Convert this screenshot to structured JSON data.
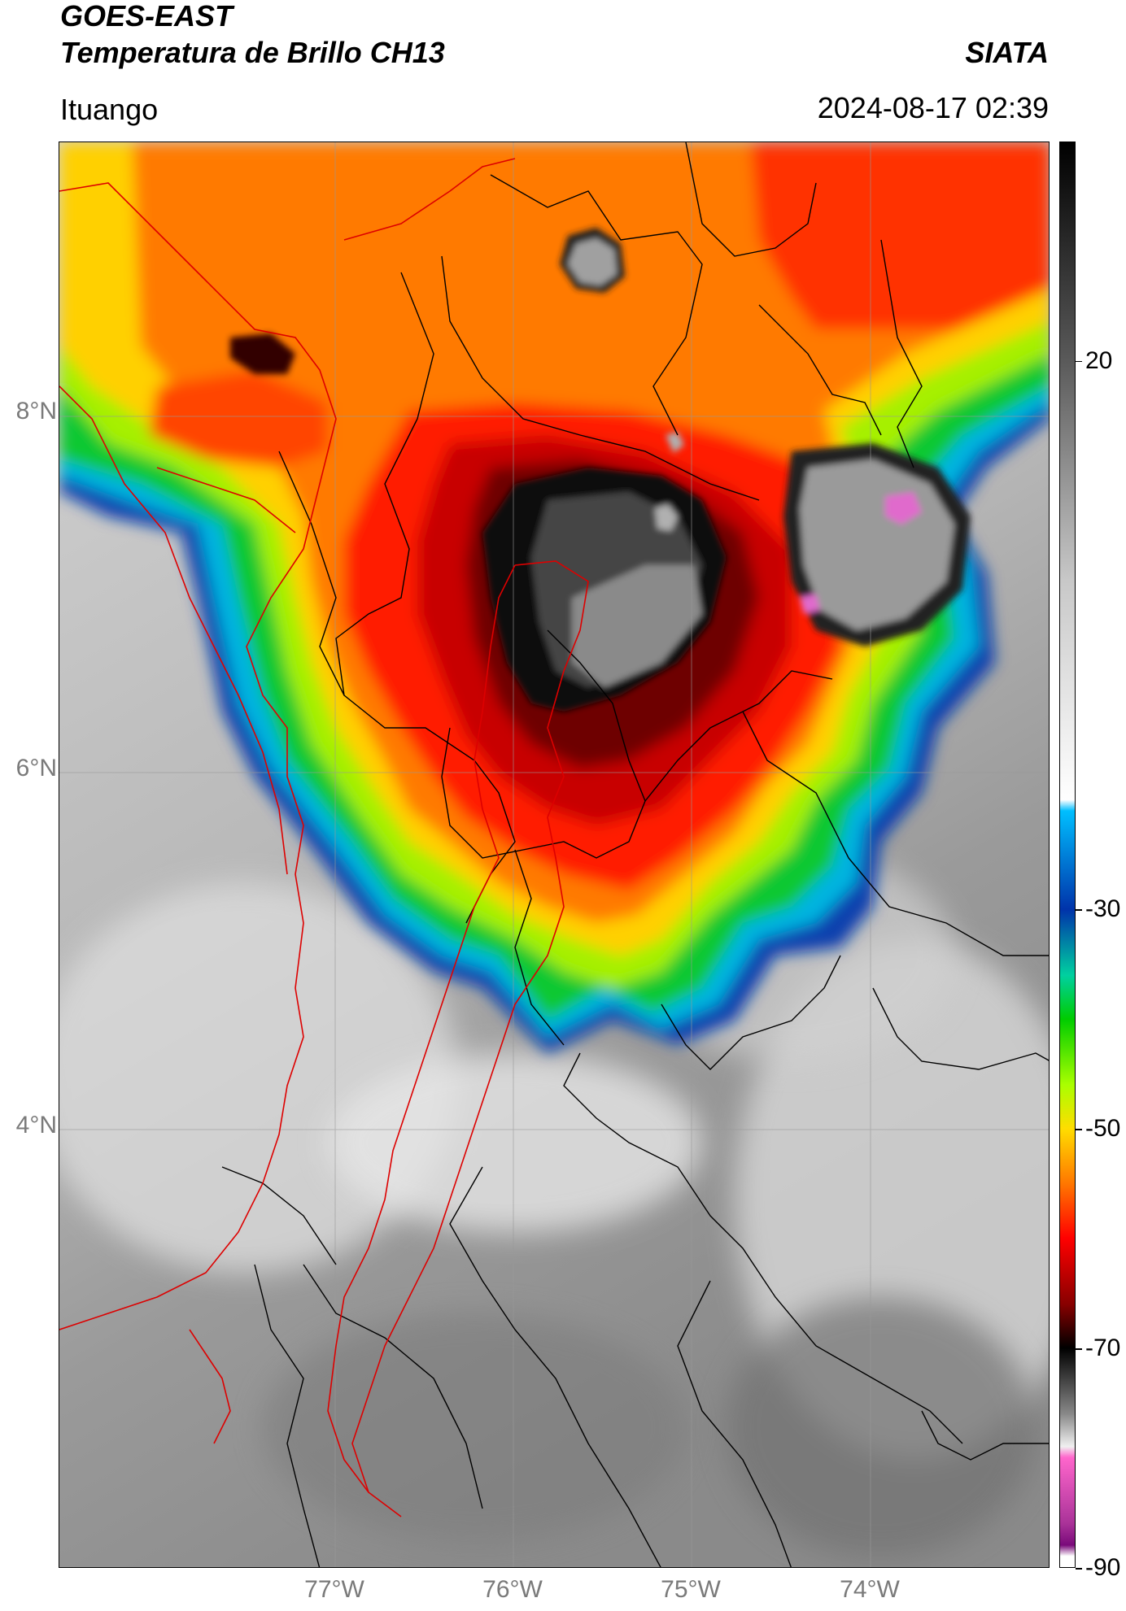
{
  "header": {
    "satellite": "GOES-EAST",
    "product": "Temperatura de Brillo CH13",
    "organization": "SIATA",
    "location": "Ituango",
    "datetime": "2024-08-17 02:39"
  },
  "axes": {
    "latitude_labels": [
      {
        "value": 8,
        "label": "8°N"
      },
      {
        "value": 6,
        "label": "6°N"
      },
      {
        "value": 4,
        "label": "4°N"
      }
    ],
    "longitude_labels": [
      {
        "value": -77,
        "label": "77°W"
      },
      {
        "value": -76,
        "label": "76°W"
      },
      {
        "value": -75,
        "label": "75°W"
      },
      {
        "value": -74,
        "label": "74°W"
      }
    ],
    "lat_range": [
      2.5,
      9.5
    ],
    "lon_range": [
      -78.6,
      -73.0
    ]
  },
  "colorbar": {
    "ticks": [
      {
        "value": 20,
        "label": "20"
      },
      {
        "value": -30,
        "label": "-30"
      },
      {
        "value": -50,
        "label": "-50"
      },
      {
        "value": -70,
        "label": "-70"
      },
      {
        "value": -90,
        "label": "-90"
      }
    ],
    "stops": [
      {
        "value": 40,
        "color": "#000000"
      },
      {
        "value": 20,
        "color": "#5a5a5a"
      },
      {
        "value": 0,
        "color": "#c8c8c8"
      },
      {
        "value": -20,
        "color": "#ffffff"
      },
      {
        "value": -21,
        "color": "#00bfff"
      },
      {
        "value": -30,
        "color": "#0033aa"
      },
      {
        "value": -36,
        "color": "#00d0a0"
      },
      {
        "value": -40,
        "color": "#00cc00"
      },
      {
        "value": -46,
        "color": "#aaff00"
      },
      {
        "value": -50,
        "color": "#ffdd00"
      },
      {
        "value": -55,
        "color": "#ff7700"
      },
      {
        "value": -60,
        "color": "#ff0000"
      },
      {
        "value": -66,
        "color": "#880000"
      },
      {
        "value": -70,
        "color": "#000000"
      },
      {
        "value": -76,
        "color": "#888888"
      },
      {
        "value": -79,
        "color": "#f0f0f0"
      },
      {
        "value": -80,
        "color": "#ff66cc"
      },
      {
        "value": -86,
        "color": "#aa3399"
      },
      {
        "value": -88,
        "color": "#7a0a7a"
      },
      {
        "value": -89,
        "color": "#ffffff"
      }
    ]
  },
  "legend_colors": {
    "boundary_region": "#dd0000",
    "boundary_municipal": "#000000",
    "gridline": "#999999"
  }
}
